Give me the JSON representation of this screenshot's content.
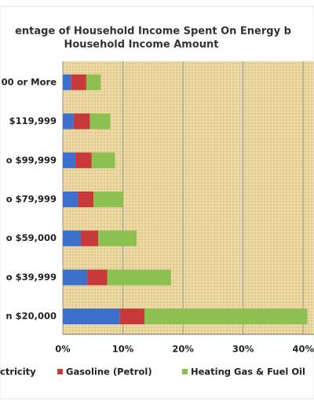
{
  "chart_data": {
    "type": "stacked-bar-horizontal",
    "title": [
      "entage of Household Income Spent On Energy b",
      "Household Income Amount"
    ],
    "categories": [
      "00 or More",
      "$119,999",
      "o $99,999",
      "o $79,999",
      "o $59,000",
      "o $39,999",
      "n $20,000"
    ],
    "series": [
      {
        "name": "ctricity",
        "color": "#3d6fcc",
        "values": [
          1.4,
          1.8,
          2.1,
          2.5,
          3.0,
          4.1,
          9.5
        ]
      },
      {
        "name": "Gasoline (Petrol)",
        "color": "#c8393b",
        "values": [
          2.5,
          2.7,
          2.7,
          2.6,
          2.9,
          3.3,
          4.1
        ]
      },
      {
        "name": "Heating Gas & Fuel Oil",
        "color": "#8cc152",
        "values": [
          2.4,
          3.4,
          3.9,
          5.0,
          6.4,
          10.6,
          27.1
        ]
      }
    ],
    "xlim": [
      0,
      41.8
    ],
    "xticks": [
      {
        "value": 0,
        "label": "0%"
      },
      {
        "value": 10,
        "label": "10%"
      },
      {
        "value": 20,
        "label": "20%"
      },
      {
        "value": 30,
        "label": "30%"
      },
      {
        "value": 40,
        "label": "40%"
      }
    ],
    "grid": true
  }
}
